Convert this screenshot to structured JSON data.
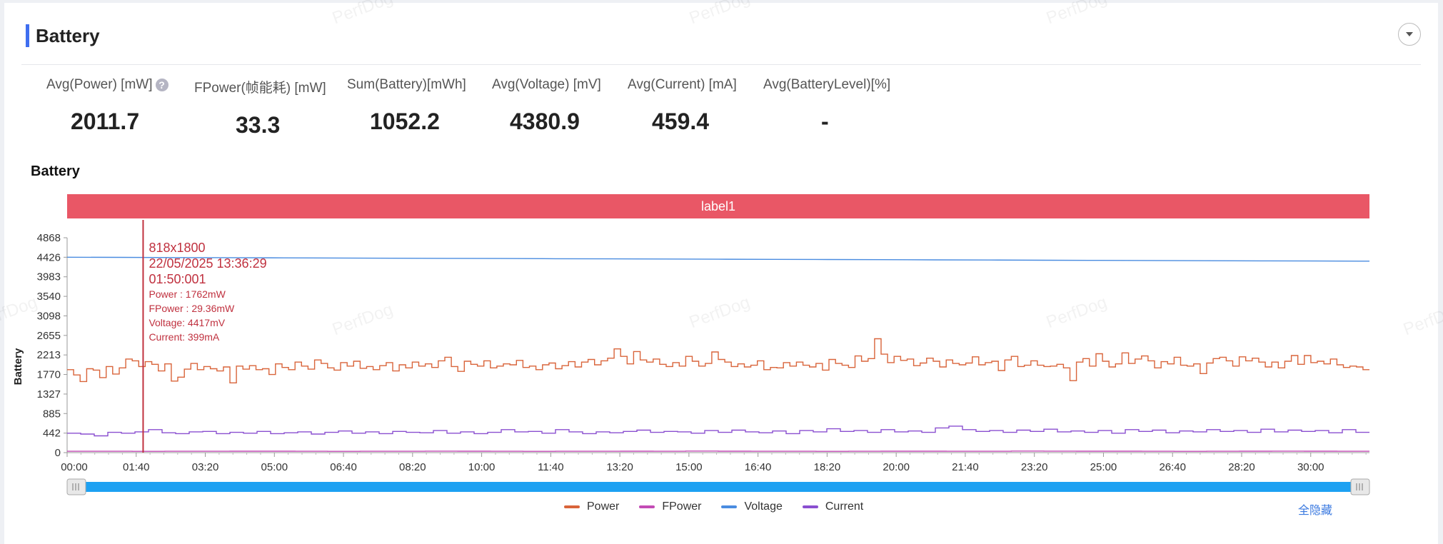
{
  "section": {
    "title": "Battery",
    "collapse_icon": "chevron-down-icon"
  },
  "stats": [
    {
      "label": "Avg(Power) [mW]",
      "value": "2011.7",
      "help": true
    },
    {
      "label": "FPower(帧能耗) [mW]",
      "value": "33.3"
    },
    {
      "label": "Sum(Battery)[mWh]",
      "value": "1052.2"
    },
    {
      "label": "Avg(Voltage) [mV]",
      "value": "4380.9"
    },
    {
      "label": "Avg(Current) [mA]",
      "value": "459.4"
    },
    {
      "label": "Avg(BatteryLevel)[%]",
      "value": "-"
    }
  ],
  "watermark_text": "PerfDog",
  "chart_data": {
    "type": "line",
    "title": "Battery",
    "ylabel": "Battery",
    "xlabel": "",
    "ylim": [
      0,
      4868
    ],
    "y_ticks": [
      0,
      442,
      885,
      1327,
      1770,
      2213,
      2655,
      3098,
      3540,
      3983,
      4426,
      4868
    ],
    "x_ticks": [
      "00:00",
      "01:40",
      "03:20",
      "05:00",
      "06:40",
      "08:20",
      "10:00",
      "11:40",
      "13:20",
      "15:00",
      "16:40",
      "18:20",
      "20:00",
      "21:40",
      "23:20",
      "25:00",
      "26:40",
      "28:20",
      "30:00"
    ],
    "x_range_seconds": [
      0,
      1885
    ],
    "label_band": {
      "text": "label1",
      "color": "#e95766"
    },
    "cursor": {
      "x_seconds": 110,
      "lines": [
        "818x1800",
        "22/05/2025 13:36:29",
        "01:50:001"
      ],
      "values": [
        "Power   : 1762mW",
        "FPower : 29.36mW",
        "Voltage: 4417mV",
        "Current: 399mA"
      ],
      "color": "#c0313f"
    },
    "series": [
      {
        "name": "Power",
        "color": "#d9643a",
        "step": true,
        "values": [
          1880,
          1760,
          1610,
          1900,
          1870,
          1700,
          1950,
          1780,
          1920,
          2120,
          2080,
          1950,
          2060,
          2000,
          1850,
          2010,
          1620,
          1710,
          1890,
          2020,
          1880,
          1950,
          1900,
          1850,
          1940,
          1580,
          1960,
          1890,
          1970,
          1880,
          1900,
          1770,
          2010,
          1930,
          1880,
          2050,
          1960,
          1890,
          2100,
          2020,
          1920,
          1870,
          2040,
          1960,
          2070,
          1910,
          1950,
          1880,
          1970,
          2040,
          1850,
          1990,
          1920,
          2050,
          1960,
          2010,
          1930,
          2080,
          2160,
          1950,
          1840,
          2070,
          2000,
          1960,
          2080,
          1920,
          1960,
          2010,
          1990,
          2090,
          1930,
          1960,
          1880,
          1990,
          2030,
          1900,
          1970,
          2060,
          1940,
          2050,
          2110,
          1990,
          2080,
          2140,
          2350,
          2180,
          2010,
          2290,
          2100,
          2050,
          2120,
          2000,
          1950,
          2040,
          1960,
          2180,
          2070,
          1960,
          2020,
          2280,
          2110,
          2050,
          1950,
          2010,
          1940,
          1980,
          2080,
          1880,
          1930,
          1920,
          2040,
          1960,
          2050,
          1980,
          1940,
          2020,
          1870,
          2110,
          2020,
          1980,
          1930,
          2190,
          2070,
          2130,
          2580,
          2230,
          2040,
          2180,
          2090,
          2120,
          1970,
          2030,
          2140,
          2070,
          1940,
          2100,
          2020,
          1990,
          2030,
          2170,
          1990,
          2040,
          2070,
          1860,
          2100,
          2180,
          1950,
          1980,
          2080,
          1980,
          1950,
          1960,
          2000,
          1920,
          1630,
          2050,
          2130,
          1960,
          2240,
          2070,
          1940,
          2010,
          2260,
          2020,
          2120,
          2190,
          2080,
          1920,
          2060,
          2010,
          2160,
          1980,
          1960,
          2010,
          1790,
          2030,
          2130,
          2160,
          2080,
          1960,
          2170,
          2080,
          2140,
          2050,
          1940,
          2050,
          1920,
          2070,
          2200,
          2000,
          2200,
          2040,
          2070,
          2010,
          2120,
          1990,
          1930,
          1960,
          1940,
          1880
        ]
      },
      {
        "name": "FPower",
        "color": "#c34bb5",
        "step": true,
        "values": [
          30,
          30,
          29,
          31,
          30,
          33,
          32,
          30,
          29,
          30,
          31,
          34,
          33,
          30,
          29,
          30,
          31,
          32,
          30,
          35,
          33,
          31,
          30,
          29,
          31,
          32,
          33,
          30,
          31,
          35,
          34,
          33,
          32,
          30,
          29,
          31,
          33,
          34,
          32,
          30
        ]
      },
      {
        "name": "Voltage",
        "color": "#4a8ce0",
        "step": false,
        "values": [
          4426,
          4423,
          4419,
          4416,
          4412,
          4408,
          4404,
          4401,
          4397,
          4393,
          4389,
          4386,
          4382,
          4378,
          4375,
          4371,
          4367,
          4363,
          4359,
          4356,
          4352,
          4348,
          4344,
          4340,
          4337
        ]
      },
      {
        "name": "Current",
        "color": "#8a4fd0",
        "step": true,
        "values": [
          440,
          420,
          380,
          460,
          440,
          470,
          520,
          450,
          430,
          470,
          480,
          430,
          460,
          440,
          480,
          430,
          450,
          470,
          420,
          460,
          490,
          440,
          470,
          430,
          480,
          460,
          450,
          500,
          440,
          470,
          430,
          460,
          520,
          470,
          480,
          440,
          520,
          470,
          430,
          470,
          450,
          480,
          510,
          460,
          480,
          470,
          440,
          500,
          460,
          510,
          470,
          450,
          490,
          430,
          500,
          470,
          540,
          480,
          500,
          460,
          520,
          470,
          490,
          460,
          560,
          600,
          520,
          480,
          500,
          460,
          510,
          480,
          530,
          470,
          490,
          460,
          500,
          440,
          520,
          480,
          510,
          450,
          490,
          470,
          520,
          480,
          500,
          460,
          530,
          470,
          510,
          480,
          500,
          450,
          520,
          460
        ]
      }
    ]
  },
  "legend": [
    {
      "name": "Power",
      "color": "#d9643a"
    },
    {
      "name": "FPower",
      "color": "#c34bb5"
    },
    {
      "name": "Voltage",
      "color": "#4a8ce0"
    },
    {
      "name": "Current",
      "color": "#8a4fd0"
    }
  ],
  "hide_all_label": "全隐藏",
  "colors": {
    "accent": "#3f6ef0",
    "slider": "#1da1f2"
  }
}
